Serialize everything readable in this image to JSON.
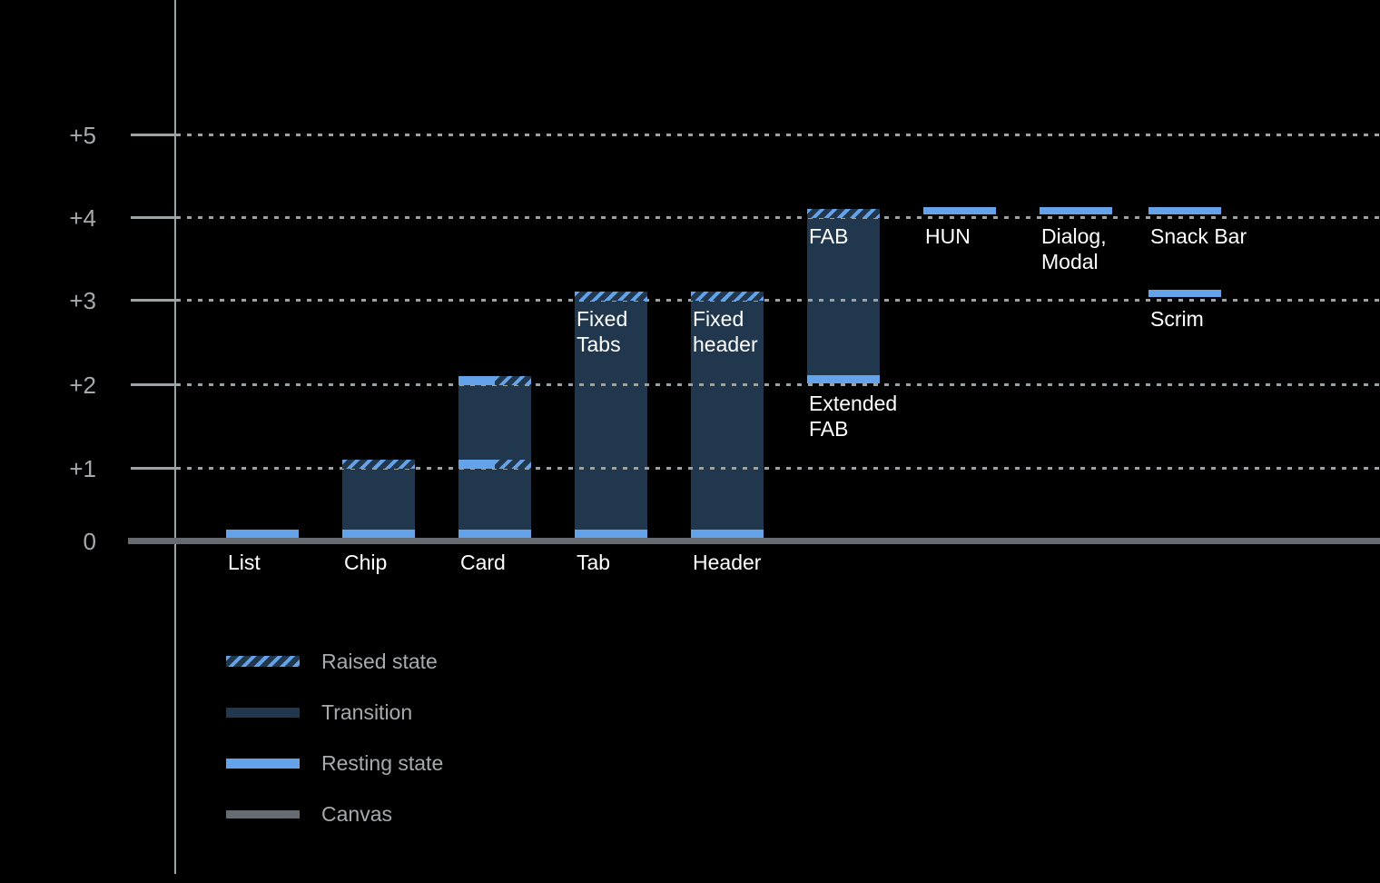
{
  "chart_data": {
    "type": "bar",
    "title": "",
    "ylabel": "",
    "xlabel": "",
    "y_axis": {
      "range": [
        0,
        5.5
      ],
      "grid": "dotted-horizontal",
      "ticks": [
        {
          "label": "+5",
          "level": 5
        },
        {
          "label": "+4",
          "level": 4
        },
        {
          "label": "+3",
          "level": 3
        },
        {
          "label": "+2",
          "level": 2
        },
        {
          "label": "+1",
          "level": 1
        },
        {
          "label": "0",
          "level": 0
        }
      ]
    },
    "legend_position": "bottom-left",
    "legend": [
      {
        "label": "Raised state",
        "style": "hatched"
      },
      {
        "label": "Transition",
        "style": "solid-transition"
      },
      {
        "label": "Resting state",
        "style": "solid-resting"
      },
      {
        "label": "Canvas",
        "style": "solid-canvas"
      }
    ],
    "colors": {
      "bg": "#000000",
      "resting": "#64A3EA",
      "transition": "#21374E",
      "canvas": "#666B72",
      "grid": "#9CA1A4",
      "axis": "#9EA3A6",
      "text_primary": "#FFFFFF",
      "text_secondary": "#A7AAAD"
    },
    "bars": [
      {
        "name": "list",
        "col": 0,
        "elevations": {
          "resting": [
            0
          ]
        },
        "body": null,
        "bands": [
          {
            "level": 0,
            "kind": "resting",
            "span": "full",
            "pos": "on-canvas"
          }
        ],
        "labels": [
          {
            "lines": [
              "List"
            ],
            "pos": "axis"
          }
        ]
      },
      {
        "name": "chip",
        "col": 1,
        "elevations": {
          "resting": [
            0
          ],
          "transition": [
            0,
            1
          ],
          "raised": [
            1
          ]
        },
        "body": [
          0,
          1
        ],
        "bands": [
          {
            "level": 0,
            "kind": "resting",
            "span": "full",
            "pos": "on-canvas"
          },
          {
            "level": 1,
            "kind": "raised",
            "span": "full",
            "pos": "top"
          }
        ],
        "labels": [
          {
            "lines": [
              "Chip"
            ],
            "pos": "axis"
          }
        ]
      },
      {
        "name": "card",
        "col": 2,
        "elevations": {
          "resting": [
            0,
            1,
            2
          ],
          "transition": [
            0,
            2
          ],
          "raised": [
            1,
            2
          ]
        },
        "body": [
          0,
          2
        ],
        "bands": [
          {
            "level": 0,
            "kind": "resting",
            "span": "full",
            "pos": "on-canvas"
          },
          {
            "level": 1,
            "kind": "resting",
            "span": "left-half",
            "pos": "top"
          },
          {
            "level": 1,
            "kind": "raised",
            "span": "right-half",
            "pos": "top"
          },
          {
            "level": 2,
            "kind": "resting",
            "span": "left-half",
            "pos": "top"
          },
          {
            "level": 2,
            "kind": "raised",
            "span": "right-half",
            "pos": "top"
          }
        ],
        "labels": [
          {
            "lines": [
              "Card"
            ],
            "pos": "axis"
          }
        ]
      },
      {
        "name": "tab",
        "col": 3,
        "elevations": {
          "resting": [
            0
          ],
          "transition": [
            0,
            3
          ],
          "raised": [
            3
          ]
        },
        "body": [
          0,
          3
        ],
        "bands": [
          {
            "level": 0,
            "kind": "resting",
            "span": "full",
            "pos": "on-canvas"
          },
          {
            "level": 3,
            "kind": "raised",
            "span": "full",
            "pos": "top"
          }
        ],
        "labels": [
          {
            "lines": [
              "Tab"
            ],
            "pos": "axis"
          },
          {
            "lines": [
              "Fixed",
              "Tabs"
            ],
            "pos": "inside-top",
            "at": 3
          }
        ]
      },
      {
        "name": "header",
        "col": 4,
        "elevations": {
          "resting": [
            0
          ],
          "transition": [
            0,
            3
          ],
          "raised": [
            3
          ]
        },
        "body": [
          0,
          3
        ],
        "bands": [
          {
            "level": 0,
            "kind": "resting",
            "span": "full",
            "pos": "on-canvas"
          },
          {
            "level": 3,
            "kind": "raised",
            "span": "full",
            "pos": "top"
          }
        ],
        "labels": [
          {
            "lines": [
              "Header"
            ],
            "pos": "axis"
          },
          {
            "lines": [
              "Fixed",
              "header"
            ],
            "pos": "inside-top",
            "at": 3
          }
        ]
      },
      {
        "name": "fab",
        "col": 5,
        "elevations": {
          "resting": [
            2
          ],
          "transition": [
            2,
            4
          ],
          "raised": [
            4
          ]
        },
        "body": [
          2,
          4
        ],
        "bands": [
          {
            "level": 2,
            "kind": "resting",
            "span": "full",
            "pos": "bar-bottom"
          },
          {
            "level": 4,
            "kind": "raised",
            "span": "full",
            "pos": "top"
          }
        ],
        "labels": [
          {
            "lines": [
              "FAB"
            ],
            "pos": "inside-top",
            "at": 4
          },
          {
            "lines": [
              "Extended",
              "FAB"
            ],
            "pos": "below-level",
            "at": 2
          }
        ]
      },
      {
        "name": "hun",
        "col": 6,
        "elevations": {
          "resting": [
            4
          ]
        },
        "body": null,
        "bands": [
          {
            "level": 4,
            "kind": "resting",
            "span": "full",
            "pos": "float"
          }
        ],
        "labels": [
          {
            "lines": [
              "HUN"
            ],
            "pos": "below-level",
            "at": 4
          }
        ]
      },
      {
        "name": "dialog-modal",
        "col": 7,
        "elevations": {
          "resting": [
            4
          ]
        },
        "body": null,
        "bands": [
          {
            "level": 4,
            "kind": "resting",
            "span": "full",
            "pos": "float"
          }
        ],
        "labels": [
          {
            "lines": [
              "Dialog,",
              "Modal"
            ],
            "pos": "below-level",
            "at": 4
          }
        ]
      },
      {
        "name": "snack-bar",
        "col": 8,
        "elevations": {
          "resting": [
            4
          ]
        },
        "body": null,
        "bands": [
          {
            "level": 4,
            "kind": "resting",
            "span": "full",
            "pos": "float"
          }
        ],
        "labels": [
          {
            "lines": [
              "Snack Bar"
            ],
            "pos": "below-level",
            "at": 4
          }
        ]
      },
      {
        "name": "scrim",
        "col": 8,
        "elevations": {
          "resting": [
            3
          ]
        },
        "body": null,
        "bands": [
          {
            "level": 3,
            "kind": "resting",
            "span": "full",
            "pos": "float"
          }
        ],
        "labels": [
          {
            "lines": [
              "Scrim"
            ],
            "pos": "below-level",
            "at": 3
          }
        ]
      }
    ]
  }
}
